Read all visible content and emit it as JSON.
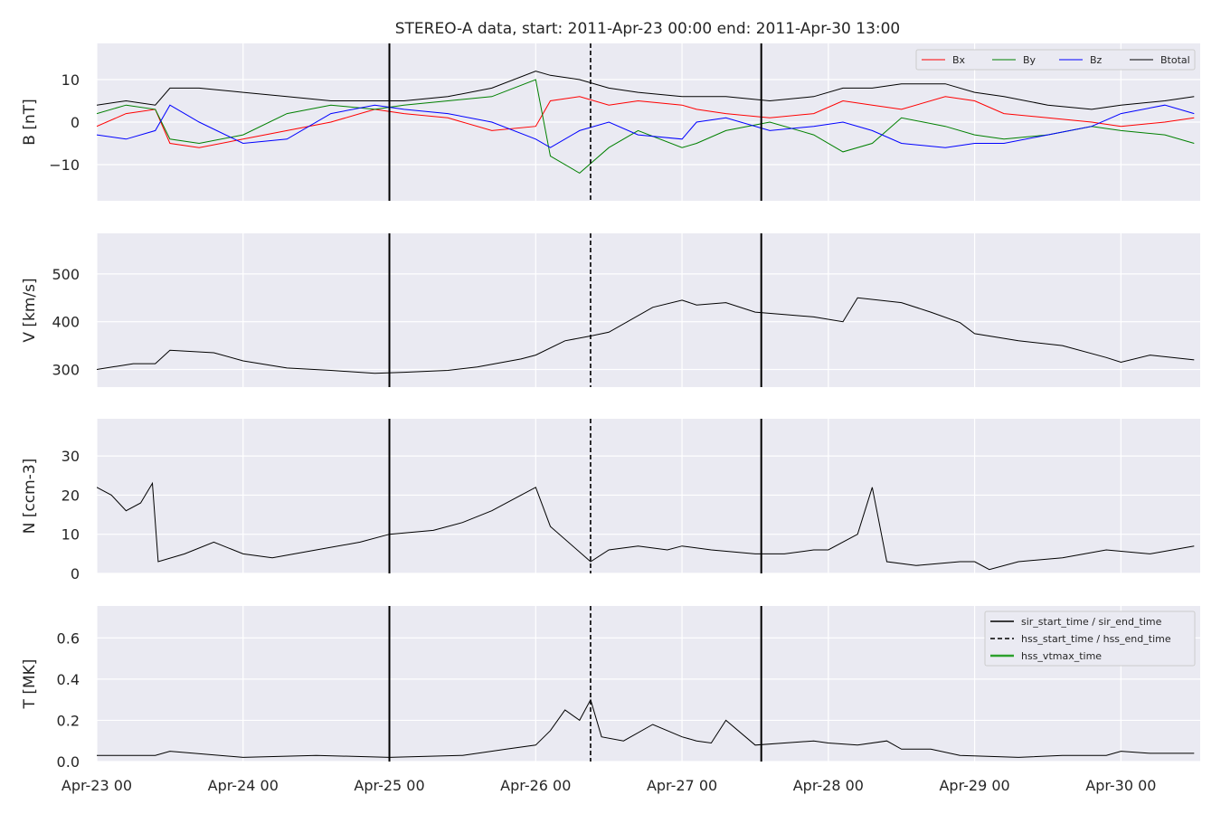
{
  "figure": {
    "title": "STEREO-A data, start: 2011-Apr-23 00:00  end: 2011-Apr-30 13:00",
    "x_tick_labels": [
      "Apr-23 00",
      "Apr-24 00",
      "Apr-25 00",
      "Apr-26 00",
      "Apr-27 00",
      "Apr-28 00",
      "Apr-29 00",
      "Apr-30 00"
    ],
    "colors": {
      "background": "#eaeaf2",
      "grid": "#ffffff",
      "Bx": "#ff0000",
      "By": "#008000",
      "Bz": "#0000ff",
      "Btotal": "#000000",
      "vtmax": "#2ca02c"
    }
  },
  "chart_data": {
    "type": "line",
    "x_unit": "days since 2011-04-23 00:00",
    "xlim": [
      0,
      7.5417
    ],
    "event_lines": {
      "sir_start_time": 2.0,
      "hss_start_time": 3.375,
      "sir_end_time": 4.5417
    },
    "panels": [
      {
        "id": "B",
        "ylabel": "B [nT]",
        "ylim": [
          -18.5,
          18.5
        ],
        "yticks": [
          -10,
          0,
          10
        ],
        "yticklabels": [
          "−10",
          "0",
          "10"
        ],
        "legend": {
          "position": "top-right",
          "entries": [
            "Bx",
            "By",
            "Bz",
            "Btotal"
          ]
        },
        "series": [
          {
            "name": "Bx",
            "color": "#ff0000",
            "x": [
              0,
              0.2,
              0.4,
              0.5,
              0.7,
              1,
              1.3,
              1.6,
              1.9,
              2.1,
              2.4,
              2.7,
              3,
              3.1,
              3.3,
              3.5,
              3.7,
              4,
              4.1,
              4.3,
              4.6,
              4.9,
              5.1,
              5.3,
              5.5,
              5.8,
              6,
              6.2,
              6.5,
              6.8,
              7,
              7.3,
              7.5
            ],
            "y": [
              -1,
              2,
              3,
              -5,
              -6,
              -4,
              -2,
              0,
              3,
              2,
              1,
              -2,
              -1,
              5,
              6,
              4,
              5,
              4,
              3,
              2,
              1,
              2,
              5,
              4,
              3,
              6,
              5,
              2,
              1,
              0,
              -1,
              0,
              1
            ]
          },
          {
            "name": "By",
            "color": "#008000",
            "x": [
              0,
              0.2,
              0.4,
              0.5,
              0.7,
              1,
              1.3,
              1.6,
              1.9,
              2.1,
              2.4,
              2.7,
              3,
              3.1,
              3.3,
              3.5,
              3.7,
              4,
              4.1,
              4.3,
              4.6,
              4.9,
              5.1,
              5.3,
              5.5,
              5.8,
              6,
              6.2,
              6.5,
              6.8,
              7,
              7.3,
              7.5
            ],
            "y": [
              2,
              4,
              3,
              -4,
              -5,
              -3,
              2,
              4,
              3,
              4,
              5,
              6,
              10,
              -8,
              -12,
              -6,
              -2,
              -6,
              -5,
              -2,
              0,
              -3,
              -7,
              -5,
              1,
              -1,
              -3,
              -4,
              -3,
              -1,
              -2,
              -3,
              -5
            ]
          },
          {
            "name": "Bz",
            "color": "#0000ff",
            "x": [
              0,
              0.2,
              0.4,
              0.5,
              0.7,
              1,
              1.3,
              1.6,
              1.9,
              2.1,
              2.4,
              2.7,
              3,
              3.1,
              3.3,
              3.5,
              3.7,
              4,
              4.1,
              4.3,
              4.6,
              4.9,
              5.1,
              5.3,
              5.5,
              5.8,
              6,
              6.2,
              6.5,
              6.8,
              7,
              7.3,
              7.5
            ],
            "y": [
              -3,
              -4,
              -2,
              4,
              0,
              -5,
              -4,
              2,
              4,
              3,
              2,
              0,
              -4,
              -6,
              -2,
              0,
              -3,
              -4,
              0,
              1,
              -2,
              -1,
              0,
              -2,
              -5,
              -6,
              -5,
              -5,
              -3,
              -1,
              2,
              4,
              2
            ]
          },
          {
            "name": "Btotal",
            "color": "#000000",
            "x": [
              0,
              0.2,
              0.4,
              0.5,
              0.7,
              1,
              1.3,
              1.6,
              1.9,
              2.1,
              2.4,
              2.7,
              3,
              3.1,
              3.3,
              3.5,
              3.7,
              4,
              4.1,
              4.3,
              4.6,
              4.9,
              5.1,
              5.3,
              5.5,
              5.8,
              6,
              6.2,
              6.5,
              6.8,
              7,
              7.3,
              7.5
            ],
            "y": [
              4,
              5,
              4,
              8,
              8,
              7,
              6,
              5,
              5,
              5,
              6,
              8,
              12,
              11,
              10,
              8,
              7,
              6,
              6,
              6,
              5,
              6,
              8,
              8,
              9,
              9,
              7,
              6,
              4,
              3,
              4,
              5,
              6
            ]
          }
        ]
      },
      {
        "id": "V",
        "ylabel": "V [km/s]",
        "ylim": [
          263,
          585
        ],
        "yticks": [
          300,
          400,
          500
        ],
        "yticklabels": [
          "300",
          "400",
          "500"
        ],
        "series": [
          {
            "name": "V",
            "color": "#000000",
            "x": [
              0,
              0.25,
              0.4,
              0.5,
              0.8,
              1,
              1.3,
              1.6,
              1.9,
              2.1,
              2.4,
              2.6,
              2.9,
              3,
              3.2,
              3.375,
              3.5,
              3.8,
              4,
              4.1,
              4.3,
              4.5,
              4.7,
              4.9,
              5.1,
              5.2,
              5.5,
              5.7,
              5.9,
              6,
              6.3,
              6.6,
              6.9,
              7,
              7.2,
              7.5
            ],
            "y": [
              300,
              312,
              312,
              340,
              335,
              318,
              303,
              298,
              292,
              294,
              298,
              305,
              322,
              330,
              360,
              370,
              378,
              430,
              445,
              435,
              440,
              420,
              415,
              410,
              400,
              450,
              440,
              420,
              398,
              375,
              360,
              350,
              325,
              315,
              330,
              320
            ]
          }
        ]
      },
      {
        "id": "N",
        "ylabel": "N [ccm-3]",
        "ylim": [
          0,
          39.5
        ],
        "yticks": [
          0,
          10,
          20,
          30
        ],
        "yticklabels": [
          "0",
          "10",
          "20",
          "30"
        ],
        "series": [
          {
            "name": "N",
            "color": "#000000",
            "x": [
              0,
              0.1,
              0.2,
              0.3,
              0.38,
              0.42,
              0.6,
              0.8,
              1,
              1.2,
              1.5,
              1.8,
              2,
              2.3,
              2.5,
              2.7,
              2.9,
              3,
              3.1,
              3.375,
              3.5,
              3.7,
              3.9,
              4,
              4.2,
              4.5,
              4.7,
              4.9,
              5,
              5.2,
              5.3,
              5.4,
              5.6,
              5.9,
              6,
              6.1,
              6.3,
              6.6,
              6.9,
              7.2,
              7.5
            ],
            "y": [
              22,
              20,
              16,
              18,
              23,
              3,
              5,
              8,
              5,
              4,
              6,
              8,
              10,
              11,
              13,
              16,
              20,
              22,
              12,
              3,
              6,
              7,
              6,
              7,
              6,
              5,
              5,
              6,
              6,
              10,
              22,
              3,
              2,
              3,
              3,
              1,
              3,
              4,
              6,
              5,
              7
            ]
          }
        ]
      },
      {
        "id": "T",
        "ylabel": "T [MK]",
        "ylim": [
          0,
          0.755
        ],
        "yticks": [
          0.0,
          0.2,
          0.4,
          0.6
        ],
        "yticklabels": [
          "0.0",
          "0.2",
          "0.4",
          "0.6"
        ],
        "legend": {
          "position": "top-right",
          "entries": [
            "sir_start_time / sir_end_time",
            "hss_start_time / hss_end_time",
            "hss_vtmax_time"
          ]
        },
        "series": [
          {
            "name": "T",
            "color": "#000000",
            "x": [
              0,
              0.4,
              0.5,
              1,
              1.5,
              2,
              2.5,
              2.8,
              3,
              3.1,
              3.2,
              3.3,
              3.375,
              3.45,
              3.6,
              3.8,
              4,
              4.1,
              4.2,
              4.3,
              4.5,
              4.7,
              4.9,
              5,
              5.2,
              5.4,
              5.5,
              5.7,
              5.9,
              6.3,
              6.6,
              6.9,
              7,
              7.2,
              7.5
            ],
            "y": [
              0.03,
              0.03,
              0.05,
              0.02,
              0.03,
              0.02,
              0.03,
              0.06,
              0.08,
              0.15,
              0.25,
              0.2,
              0.3,
              0.12,
              0.1,
              0.18,
              0.12,
              0.1,
              0.09,
              0.2,
              0.08,
              0.09,
              0.1,
              0.09,
              0.08,
              0.1,
              0.06,
              0.06,
              0.03,
              0.02,
              0.03,
              0.03,
              0.05,
              0.04,
              0.04
            ]
          }
        ]
      }
    ]
  }
}
